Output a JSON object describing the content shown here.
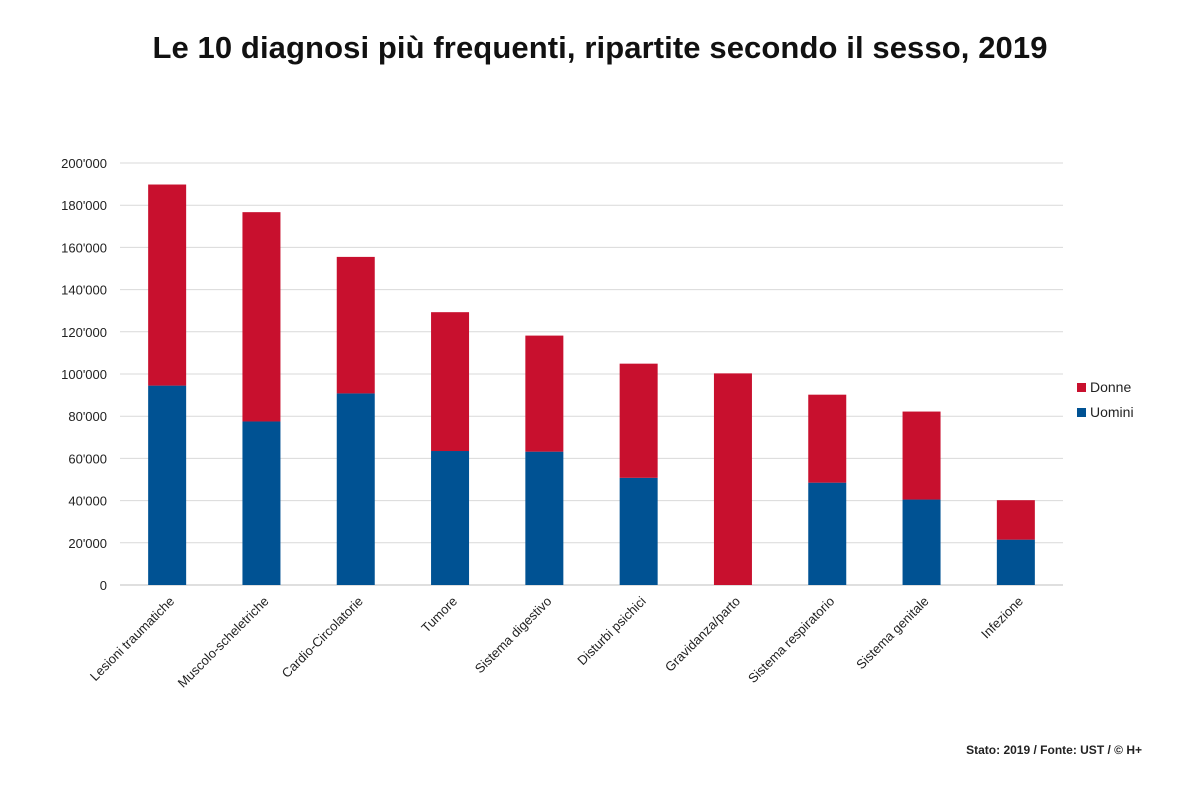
{
  "title": "Le 10 diagnosi più frequenti, ripartite secondo il sesso, 2019",
  "source": "Stato: 2019 / Fonte: UST / © H+",
  "colors": {
    "donne": "#c8102e",
    "uomini": "#005293",
    "grid": "#d9d9d9",
    "axis": "#bfbfbf"
  },
  "chart_data": {
    "type": "bar",
    "stacked": true,
    "title": "Le 10 diagnosi più frequenti, ripartite secondo il sesso, 2019",
    "xlabel": "",
    "ylabel": "",
    "ylim": [
      0,
      200000
    ],
    "yticks": [
      0,
      20000,
      40000,
      60000,
      80000,
      100000,
      120000,
      140000,
      160000,
      180000,
      200000
    ],
    "ytick_labels": [
      "0",
      "20'000",
      "40'000",
      "60'000",
      "80'000",
      "100'000",
      "120'000",
      "140'000",
      "160'000",
      "180'000",
      "200'000"
    ],
    "grid": true,
    "legend_position": "right",
    "categories": [
      "Lesioni traumatiche",
      "Muscolo-scheletriche",
      "Cardio-Circolatorie",
      "Tumore",
      "Sistema digestivo",
      "Disturbi psichici",
      "Gravidanza/parto",
      "Sistema respiratorio",
      "Sistema genitale",
      "Infezione"
    ],
    "series": [
      {
        "name": "Uomini",
        "values": [
          94500,
          77500,
          90800,
          63500,
          63200,
          50800,
          0,
          48500,
          40500,
          21500
        ]
      },
      {
        "name": "Donne",
        "values": [
          95300,
          99200,
          64700,
          65800,
          55000,
          54100,
          100300,
          41700,
          41700,
          18700
        ]
      }
    ],
    "legend": [
      "Donne",
      "Uomini"
    ]
  }
}
